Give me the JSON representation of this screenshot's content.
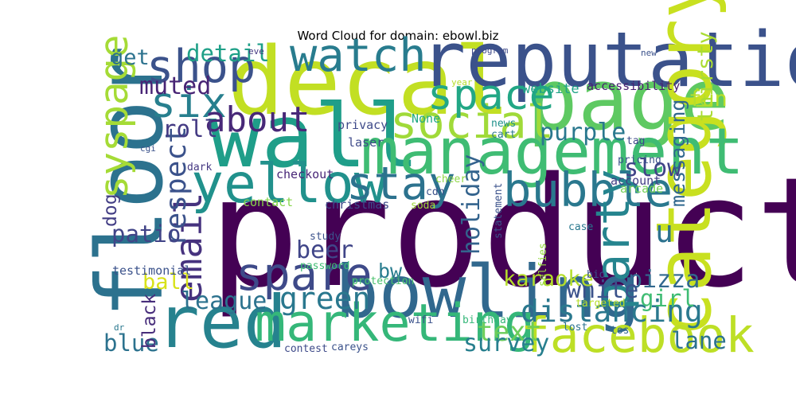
{
  "chart_data": {
    "type": "wordcloud",
    "title": "Word Cloud for domain: ebowl.biz",
    "palette": "viridis",
    "words": [
      {
        "text": "product",
        "weight": 1.0,
        "color": "#440154"
      },
      {
        "text": "decal",
        "weight": 0.62,
        "color": "#c2df23"
      },
      {
        "text": "floor",
        "weight": 0.6,
        "color": "#2c728e"
      },
      {
        "text": "wall",
        "weight": 0.58,
        "color": "#1f9e89"
      },
      {
        "text": "page",
        "weight": 0.56,
        "color": "#5ec962"
      },
      {
        "text": "reputation",
        "weight": 0.5,
        "color": "#3b528b"
      },
      {
        "text": "category",
        "weight": 0.5,
        "color": "#c8e020"
      },
      {
        "text": "bowling",
        "weight": 0.48,
        "color": "#31688e"
      },
      {
        "text": "red",
        "weight": 0.48,
        "color": "#26828e"
      },
      {
        "text": "management",
        "weight": 0.42,
        "color": "#3fbc73"
      },
      {
        "text": "yellow",
        "weight": 0.36,
        "color": "#21918c"
      },
      {
        "text": "marketing",
        "weight": 0.34,
        "color": "#35b779"
      },
      {
        "text": "facebook",
        "weight": 0.32,
        "color": "#bddf26"
      },
      {
        "text": "bubble",
        "weight": 0.31,
        "color": "#2a788e"
      },
      {
        "text": "party",
        "weight": 0.31,
        "color": "#25848e"
      },
      {
        "text": "spare",
        "weight": 0.3,
        "color": "#3e4a89"
      },
      {
        "text": "stay",
        "weight": 0.3,
        "color": "#2c728e"
      },
      {
        "text": "social",
        "weight": 0.3,
        "color": "#a0da39"
      },
      {
        "text": "watch",
        "weight": 0.3,
        "color": "#287c8e"
      },
      {
        "text": "shop",
        "weight": 0.3,
        "color": "#3b528b"
      },
      {
        "text": "six",
        "weight": 0.28,
        "color": "#277f8e"
      },
      {
        "text": "space",
        "weight": 0.28,
        "color": "#22a785"
      },
      {
        "text": "syspage",
        "weight": 0.26,
        "color": "#a5db36"
      },
      {
        "text": "email",
        "weight": 0.24,
        "color": "#46327e"
      },
      {
        "text": "about",
        "weight": 0.23,
        "color": "#482878"
      },
      {
        "text": "green",
        "weight": 0.2,
        "color": "#2a788e"
      },
      {
        "text": "distancing",
        "weight": 0.2,
        "color": "#2a788e"
      },
      {
        "text": "u",
        "weight": 0.2,
        "color": "#2c728e"
      },
      {
        "text": "respect",
        "weight": 0.19,
        "color": "#3b528b"
      },
      {
        "text": "text",
        "weight": 0.18,
        "color": "#6ccd5a"
      },
      {
        "text": "survey",
        "weight": 0.16,
        "color": "#277f8e"
      },
      {
        "text": "league",
        "weight": 0.16,
        "color": "#2c728e"
      },
      {
        "text": "muted",
        "weight": 0.16,
        "color": "#482475"
      },
      {
        "text": "purple",
        "weight": 0.16,
        "color": "#2a788e"
      },
      {
        "text": "slow",
        "weight": 0.16,
        "color": "#414487"
      },
      {
        "text": "holiday",
        "weight": 0.16,
        "color": "#33638d"
      },
      {
        "text": "pizza",
        "weight": 0.16,
        "color": "#31688e"
      },
      {
        "text": "white",
        "weight": 0.16,
        "color": "#3b528b"
      },
      {
        "text": "beer",
        "weight": 0.16,
        "color": "#404588"
      },
      {
        "text": "lane",
        "weight": 0.15,
        "color": "#2c728e"
      },
      {
        "text": "blue",
        "weight": 0.15,
        "color": "#2c728e"
      },
      {
        "text": "girl",
        "weight": 0.15,
        "color": "#3fbc73"
      },
      {
        "text": "detail",
        "weight": 0.15,
        "color": "#1fa088"
      },
      {
        "text": "roll",
        "weight": 0.15,
        "color": "#443a83"
      },
      {
        "text": "patio",
        "weight": 0.15,
        "color": "#414487"
      },
      {
        "text": "ball",
        "weight": 0.14,
        "color": "#d8e219"
      },
      {
        "text": "karaoke",
        "weight": 0.14,
        "color": "#b5de2b"
      },
      {
        "text": "get",
        "weight": 0.14,
        "color": "#2c728e"
      },
      {
        "text": "fun",
        "weight": 0.14,
        "color": "#b8de29"
      },
      {
        "text": "thirsty",
        "weight": 0.14,
        "color": "#aadc32"
      },
      {
        "text": "messaging",
        "weight": 0.13,
        "color": "#31688e"
      },
      {
        "text": "dog",
        "weight": 0.12,
        "color": "#433e85"
      },
      {
        "text": "black",
        "weight": 0.12,
        "color": "#472d7b"
      },
      {
        "text": "bw",
        "weight": 0.13,
        "color": "#287c8e"
      },
      {
        "text": "website",
        "weight": 0.09,
        "color": "#20a386"
      },
      {
        "text": "accessibility",
        "weight": 0.08,
        "color": "#481f70"
      },
      {
        "text": "statement",
        "weight": 0.07,
        "color": "#3b528b"
      },
      {
        "text": "checkout",
        "weight": 0.08,
        "color": "#482677"
      },
      {
        "text": "christmas",
        "weight": 0.08,
        "color": "#3e4989"
      },
      {
        "text": "contact",
        "weight": 0.08,
        "color": "#86d549"
      },
      {
        "text": "testimonial",
        "weight": 0.08,
        "color": "#3b528b"
      },
      {
        "text": "account",
        "weight": 0.08,
        "color": "#433e85"
      },
      {
        "text": "arcade",
        "weight": 0.08,
        "color": "#73d056"
      },
      {
        "text": "privacy",
        "weight": 0.08,
        "color": "#3e4a89"
      },
      {
        "text": "laser",
        "weight": 0.08,
        "color": "#3e4a89"
      },
      {
        "text": "None",
        "weight": 0.08,
        "color": "#22a884"
      },
      {
        "text": "news",
        "weight": 0.07,
        "color": "#21918c"
      },
      {
        "text": "cart",
        "weight": 0.07,
        "color": "#2a788e"
      },
      {
        "text": "tag",
        "weight": 0.07,
        "color": "#3e4a89"
      },
      {
        "text": "pricing",
        "weight": 0.07,
        "color": "#3b528b"
      },
      {
        "text": "dark",
        "weight": 0.07,
        "color": "#453882"
      },
      {
        "text": "cheer",
        "weight": 0.07,
        "color": "#8fd744"
      },
      {
        "text": "cdn",
        "weight": 0.07,
        "color": "#3b528b"
      },
      {
        "text": "soda",
        "weight": 0.07,
        "color": "#9fda3a"
      },
      {
        "text": "study",
        "weight": 0.07,
        "color": "#3b528b"
      },
      {
        "text": "password",
        "weight": 0.07,
        "color": "#3fbc73"
      },
      {
        "text": "protection",
        "weight": 0.07,
        "color": "#4ac16d"
      },
      {
        "text": "selfies",
        "weight": 0.07,
        "color": "#95d840"
      },
      {
        "text": "case",
        "weight": 0.07,
        "color": "#2a788e"
      },
      {
        "text": "bio",
        "weight": 0.07,
        "color": "#3b528b"
      },
      {
        "text": "targeted",
        "weight": 0.07,
        "color": "#b8de29"
      },
      {
        "text": "lost",
        "weight": 0.07,
        "color": "#2c728e"
      },
      {
        "text": "tos",
        "weight": 0.07,
        "color": "#31688e"
      },
      {
        "text": "birthday",
        "weight": 0.07,
        "color": "#35b779"
      },
      {
        "text": "wifi",
        "weight": 0.07,
        "color": "#3b528b"
      },
      {
        "text": "contest",
        "weight": 0.07,
        "color": "#3e4a89"
      },
      {
        "text": "careys",
        "weight": 0.07,
        "color": "#3b528b"
      },
      {
        "text": "dr",
        "weight": 0.06,
        "color": "#2a788e"
      },
      {
        "text": "cgi",
        "weight": 0.06,
        "color": "#3b528b"
      },
      {
        "text": "year",
        "weight": 0.06,
        "color": "#b5de2b"
      },
      {
        "text": "program",
        "weight": 0.06,
        "color": "#3e4a89"
      },
      {
        "text": "eve",
        "weight": 0.06,
        "color": "#453781"
      },
      {
        "text": "new",
        "weight": 0.06,
        "color": "#3b528b"
      }
    ]
  }
}
